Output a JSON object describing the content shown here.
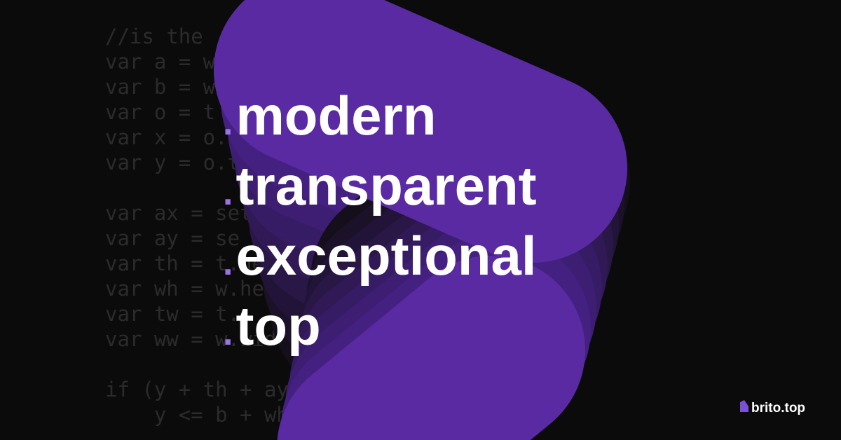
{
  "background_code": [
    "//is the",
    "var a = w",
    "var b = w",
    "var o = t",
    "var x = o.",
    "var y = o.t",
    "",
    "var ax = settin",
    "var ay = se",
    "var th = t.hei",
    "var wh = w.heig",
    "var tw = t.",
    "var ww = w.width",
    "",
    "if (y + th + ay > b &&",
    "    y <= b + wh + ay &&"
  ],
  "headline": [
    {
      "dot": ".",
      "word": "modern"
    },
    {
      "dot": ".",
      "word": "transparent"
    },
    {
      "dot": ".",
      "word": "exceptional"
    },
    {
      "dot": ".",
      "word": "top"
    }
  ],
  "logo": {
    "text": "brito.top"
  }
}
